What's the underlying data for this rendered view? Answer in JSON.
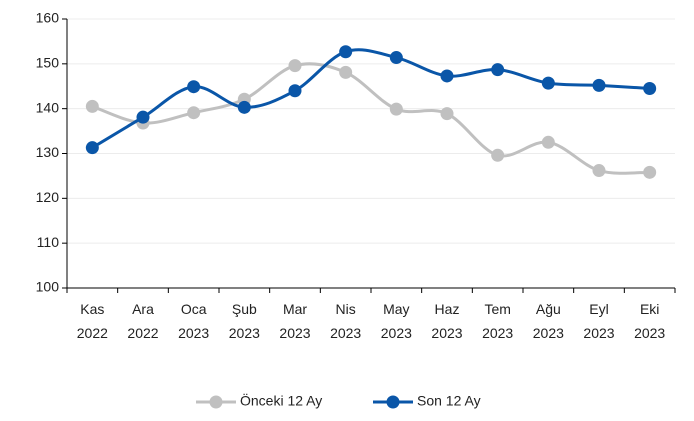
{
  "chart_data": {
    "type": "line",
    "categories": [
      "Kas 2022",
      "Ara 2022",
      "Oca 2023",
      "Şub 2023",
      "Mar 2023",
      "Nis 2023",
      "May 2023",
      "Haz 2023",
      "Tem 2023",
      "Ağu 2023",
      "Eyl 2023",
      "Eki 2023"
    ],
    "series": [
      {
        "name": "Önceki 12 Ay",
        "color": "#c0c0c0",
        "values": [
          140.5,
          136.8,
          139.1,
          142.1,
          149.6,
          148.1,
          139.9,
          138.9,
          129.6,
          132.5,
          126.2,
          125.8
        ]
      },
      {
        "name": "Son 12 Ay",
        "color": "#0a56a8",
        "values": [
          131.3,
          138.1,
          144.9,
          140.3,
          144.0,
          152.7,
          151.4,
          147.3,
          148.7,
          145.7,
          145.2,
          144.5
        ]
      }
    ],
    "ylim": [
      100,
      160
    ],
    "yticks": [
      100,
      110,
      120,
      130,
      140,
      150,
      160
    ],
    "grid": true,
    "legend": "bottom"
  }
}
